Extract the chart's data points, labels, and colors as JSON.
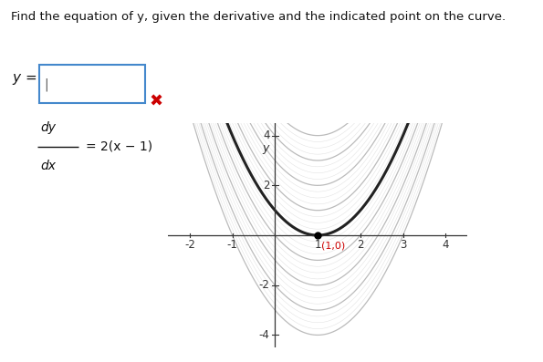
{
  "title": "Find the equation of y, given the derivative and the indicated point on the curve.",
  "point": [
    1,
    0
  ],
  "point_label": "(1,0)",
  "solution_C": 0,
  "family_C_values": [
    -4,
    -3,
    -2,
    -1,
    1,
    2,
    3,
    4
  ],
  "xlim": [
    -2.5,
    4.5
  ],
  "ylim": [
    -4.5,
    4.5
  ],
  "xticks": [
    -2,
    -1,
    1,
    2,
    3,
    4
  ],
  "yticks": [
    -4,
    -2,
    2,
    4
  ],
  "family_color": "#bbbbbb",
  "solution_color": "#222222",
  "point_color": "#000000",
  "point_label_color": "#cc0000",
  "background_color": "#ffffff",
  "box_color": "#4488cc",
  "x_mark_color": "#cc0000"
}
